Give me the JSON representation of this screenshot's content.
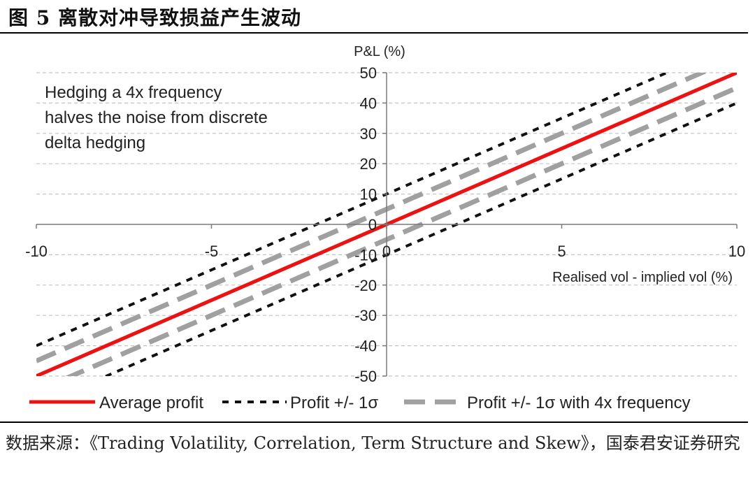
{
  "figure": {
    "title": "图 5 离散对冲导致损益产生波动",
    "source": "数据来源：《Trading Volatility, Correlation, Term Structure and Skew》，国泰君安证券研究"
  },
  "chart_data": {
    "type": "line",
    "title": "",
    "xlabel": "Realised vol - implied vol (%)",
    "ylabel": "P&L (%)",
    "xlim": [
      -10,
      10
    ],
    "ylim": [
      -50,
      50
    ],
    "x_ticks": [
      -10,
      -5,
      0,
      5,
      10
    ],
    "y_ticks": [
      50,
      40,
      30,
      20,
      10,
      0,
      -10,
      -20,
      -30,
      -40,
      -50
    ],
    "grid": "horizontal dashed",
    "legend_position": "bottom",
    "annotation": "Hedging a 4x frequency halves the noise from discrete delta hedging",
    "annotation_lines": [
      "Hedging a 4x frequency",
      "halves the noise from discrete",
      "delta hedging"
    ],
    "series": [
      {
        "name": "Average profit",
        "style": "solid",
        "color": "#ee1111",
        "x": [
          -10,
          10
        ],
        "y": [
          -50,
          50
        ]
      },
      {
        "name": "Profit +/- 1σ",
        "style": "dotted",
        "color": "#111111",
        "x": [
          -10,
          10
        ],
        "y": [
          -40,
          60
        ]
      },
      {
        "name": "",
        "style": "dotted",
        "color": "#111111",
        "x": [
          -10,
          10
        ],
        "y": [
          -60,
          40
        ]
      },
      {
        "name": "Profit +/- 1σ with 4x frequency",
        "style": "dashed",
        "color": "#a0a0a0",
        "x": [
          -10,
          10
        ],
        "y": [
          -45,
          55
        ]
      },
      {
        "name": "",
        "style": "dashed",
        "color": "#a0a0a0",
        "x": [
          -10,
          10
        ],
        "y": [
          -55,
          45
        ]
      }
    ]
  }
}
